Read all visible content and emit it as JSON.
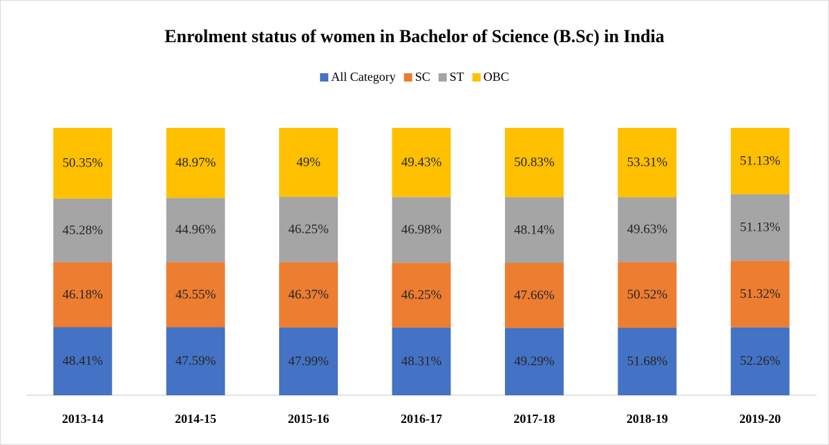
{
  "chart_data": {
    "type": "bar",
    "stacked": "percent",
    "title": "Enrolment status of women in Bachelor of Science (B.Sc) in India",
    "categories": [
      "2013-14",
      "2014-15",
      "2015-16",
      "2016-17",
      "2017-18",
      "2018-19",
      "2019-20"
    ],
    "legend": "top",
    "series": [
      {
        "name": "All Category",
        "color": "#4472c4",
        "values": [
          48.41,
          47.59,
          47.99,
          48.31,
          49.29,
          51.68,
          52.26
        ],
        "value_labels": [
          "48.41%",
          "47.59%",
          "47.99%",
          "48.31%",
          "49.29%",
          "51.68%",
          "52.26%"
        ]
      },
      {
        "name": "SC",
        "color": "#ed7d31",
        "values": [
          46.18,
          45.55,
          46.37,
          46.25,
          47.66,
          50.52,
          51.32
        ],
        "value_labels": [
          "46.18%",
          "45.55%",
          "46.37%",
          "46.25%",
          "47.66%",
          "50.52%",
          "51.32%"
        ]
      },
      {
        "name": "ST",
        "color": "#a5a5a5",
        "values": [
          45.28,
          44.96,
          46.25,
          46.98,
          48.14,
          49.63,
          51.13
        ],
        "value_labels": [
          "45.28%",
          "44.96%",
          "46.25%",
          "46.98%",
          "48.14%",
          "49.63%",
          "51.13%"
        ]
      },
      {
        "name": "OBC",
        "color": "#ffc000",
        "values": [
          50.35,
          48.97,
          49,
          49.43,
          50.83,
          53.31,
          51.13
        ],
        "value_labels": [
          "50.35%",
          "48.97%",
          "49%",
          "49.43%",
          "50.83%",
          "53.31%",
          "51.13%"
        ]
      }
    ]
  }
}
